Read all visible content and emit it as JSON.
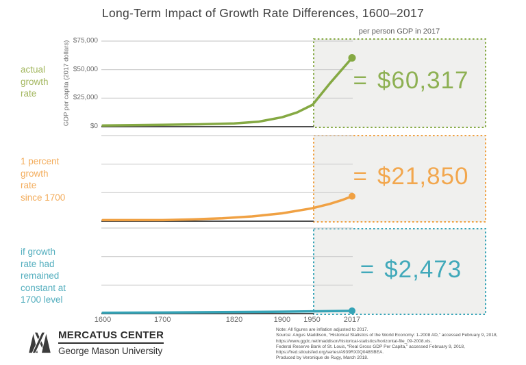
{
  "title": "Long-Term Impact of Growth Rate Differences, 1600–2017",
  "top_right_label": "per person GDP in 2017",
  "y_axis": {
    "title": "GDP per capita (2017 dollars)",
    "tick_labels": [
      "$75,000",
      "$50,000",
      "$25,000",
      "$0"
    ],
    "tick_values": [
      75000,
      50000,
      25000,
      0
    ]
  },
  "x_axis": {
    "tick_labels": [
      "1600",
      "1700",
      "1820",
      "1900",
      "1950",
      "2017"
    ],
    "tick_values": [
      1600,
      1700,
      1820,
      1900,
      1950,
      2017
    ]
  },
  "panels": [
    {
      "name": "actual-growth-rate",
      "label_lines": [
        "actual",
        "growth",
        "rate"
      ],
      "label_color": "#A3B75F",
      "line_color": "#85A943",
      "value_color": "#8DB052",
      "equals": "=",
      "value": "$60,317"
    },
    {
      "name": "one-percent-growth-rate-since-1700",
      "label_lines": [
        "1 percent",
        "growth",
        "rate",
        "since 1700"
      ],
      "label_color": "#F3AC5B",
      "line_color": "#F0A143",
      "value_color": "#F2A74E",
      "equals": "=",
      "value": "$21,850"
    },
    {
      "name": "constant-1700-growth-rate",
      "label_lines": [
        "if growth",
        "rate had",
        "remained",
        "constant at",
        "1700 level"
      ],
      "label_color": "#53AEBE",
      "line_color": "#35A3B6",
      "value_color": "#41A9BA",
      "equals": "=",
      "value": "$2,473"
    }
  ],
  "chart_data": {
    "type": "line",
    "title": "Long-Term Impact of Growth Rate Differences, 1600–2017",
    "ylabel": "GDP per capita (2017 dollars)",
    "annotation": "per person GDP in 2017",
    "ylim": [
      0,
      75000
    ],
    "xlim": [
      1600,
      2017
    ],
    "yticks": [
      0,
      25000,
      50000,
      75000
    ],
    "xticks": [
      1600,
      1700,
      1820,
      1900,
      1950,
      2017
    ],
    "grid": true,
    "series": [
      {
        "name": "actual growth rate",
        "color": "#85A943",
        "end_value_2017": 60317,
        "end_label": "$60,317",
        "points": [
          [
            1600,
            1100
          ],
          [
            1650,
            1300
          ],
          [
            1700,
            1600
          ],
          [
            1760,
            2100
          ],
          [
            1820,
            2800
          ],
          [
            1860,
            4300
          ],
          [
            1900,
            8300
          ],
          [
            1925,
            12500
          ],
          [
            1951,
            19200
          ],
          [
            1980,
            38000
          ],
          [
            2017,
            60317
          ]
        ]
      },
      {
        "name": "1 percent growth rate since 1700",
        "color": "#F0A143",
        "end_value_2017": 21850,
        "end_label": "$21,850",
        "points": [
          [
            1600,
            950
          ],
          [
            1700,
            950
          ],
          [
            1750,
            1560
          ],
          [
            1800,
            2560
          ],
          [
            1850,
            4200
          ],
          [
            1900,
            6900
          ],
          [
            1950,
            11300
          ],
          [
            1980,
            15200
          ],
          [
            2000,
            18500
          ],
          [
            2017,
            21850
          ]
        ]
      },
      {
        "name": "if growth rate had remained constant at 1700 level",
        "color": "#35A3B6",
        "end_value_2017": 2473,
        "end_label": "$2,473",
        "points": [
          [
            1600,
            750
          ],
          [
            1700,
            950
          ],
          [
            1800,
            1300
          ],
          [
            1900,
            1750
          ],
          [
            2000,
            2350
          ],
          [
            2017,
            2473
          ]
        ]
      }
    ]
  },
  "logo": {
    "name": "MERCATUS CENTER",
    "sub": "George Mason University"
  },
  "notes": [
    "Note: All figures are inflation adjusted to 2017.",
    "Source: Angus Maddison, “Historical Statistics of the World Economy: 1-2008 AD,” accessed February 9, 2018,",
    "https://www.ggdc.net/maddison/historical-statistics/horizontal-file_09-2008.xls.",
    "Federal Reserve Bank of St. Louis, “Real Gross GDP Per Capita,” accessed February 9, 2018,",
    "https://fred.stlouisfed.org/series/A939RX0Q048SBEA.",
    "Produced by Veronique de Rugy, March 2018."
  ]
}
